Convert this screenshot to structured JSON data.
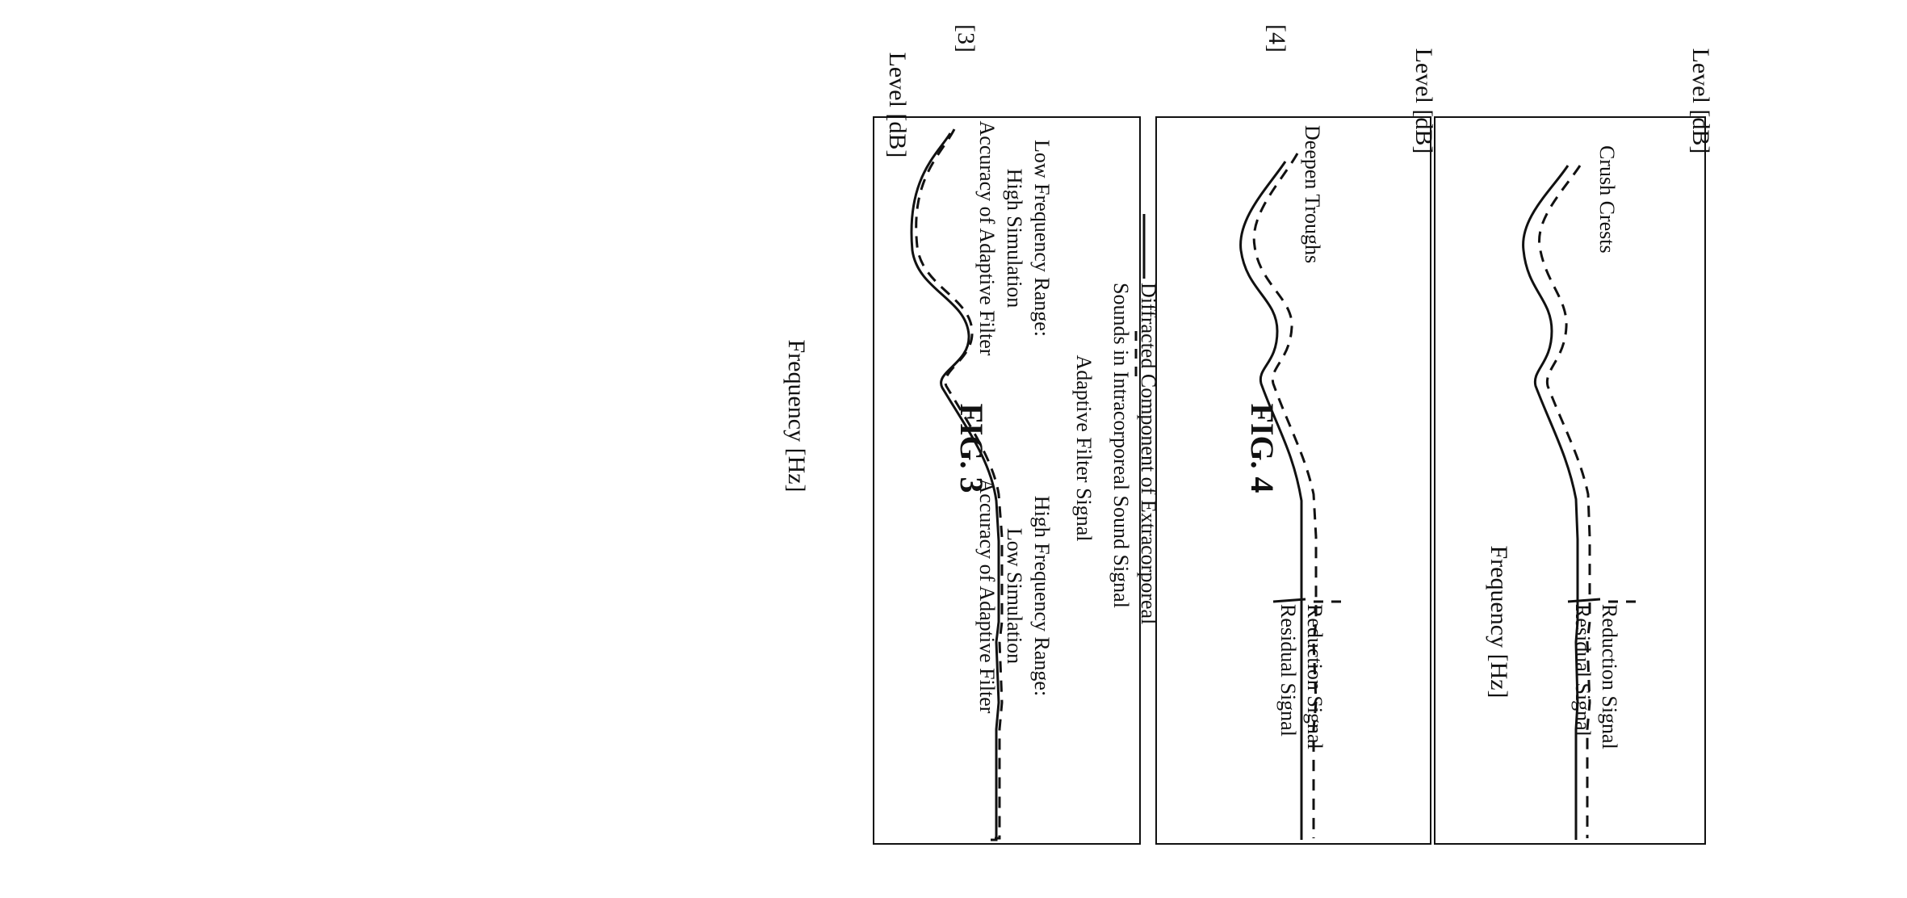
{
  "fig3": {
    "bracket": "[3]",
    "title": "FIG. 3",
    "ylabel": "Level [dB]",
    "xlabel": "Frequency [Hz]",
    "legend": {
      "solid": [
        "Diffracted Component of Extracorporeal",
        "Sounds in Intracorporeal Sound Signal"
      ],
      "dashed": [
        "Adaptive Filter Signal"
      ]
    },
    "annot_low": [
      "Low Frequency Range:",
      "High Simulation",
      "Accuracy of Adaptive Filter"
    ],
    "annot_high": [
      "High Frequency Range:",
      "Low Simulation",
      "Accuracy of Adaptive Filter"
    ]
  },
  "fig4": {
    "bracket": "[4]",
    "title": "FIG. 4",
    "panel_a": {
      "ylabel": "Level [dB]",
      "label": "Deepen Troughs",
      "legend": {
        "solid": "Residual Signal",
        "dashed": "Reduction Signal"
      }
    },
    "panel_b": {
      "ylabel": "Level [dB]",
      "xlabel": "Frequency [Hz]",
      "label": "Crush Crests",
      "legend": {
        "solid": "Residual Signal",
        "dashed": "Reduction Signal"
      }
    }
  },
  "colors": {
    "ink": "#111111",
    "paper": "#ffffff"
  }
}
